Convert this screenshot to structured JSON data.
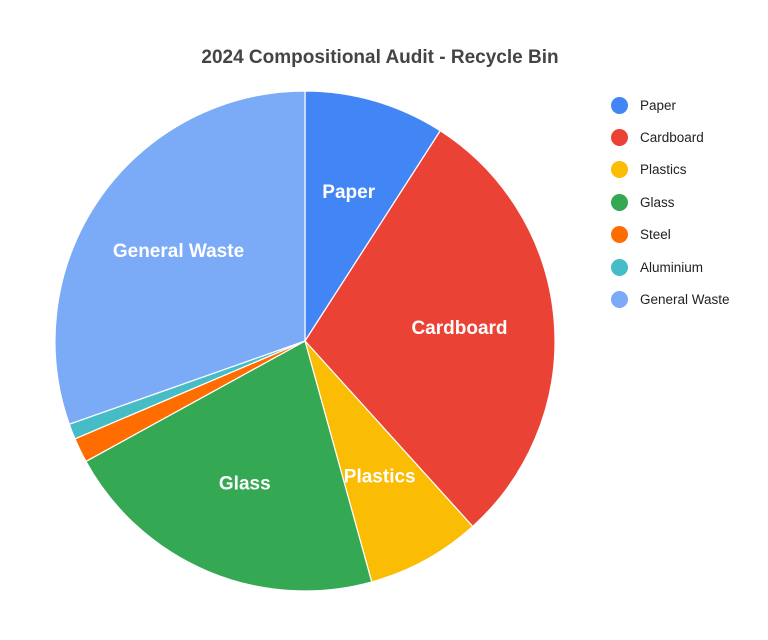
{
  "chart_data": {
    "type": "pie",
    "title": "2024 Compositional Audit - Recycle Bin",
    "start_angle_deg": 0,
    "direction": "clockwise",
    "legend_position": "right",
    "slices": [
      {
        "name": "Paper",
        "value": 9.1,
        "color": "#4285f4",
        "label_shown": true
      },
      {
        "name": "Cardboard",
        "value": 29.2,
        "color": "#ea4335",
        "label_shown": true
      },
      {
        "name": "Plastics",
        "value": 7.4,
        "color": "#fbbc04",
        "label_shown": true
      },
      {
        "name": "Glass",
        "value": 21.3,
        "color": "#34a853",
        "label_shown": true
      },
      {
        "name": "Steel",
        "value": 1.6,
        "color": "#ff6d01",
        "label_shown": false
      },
      {
        "name": "Aluminium",
        "value": 1.0,
        "color": "#46bdc6",
        "label_shown": false
      },
      {
        "name": "General Waste",
        "value": 30.4,
        "color": "#7baaf7",
        "label_shown": true
      }
    ]
  }
}
